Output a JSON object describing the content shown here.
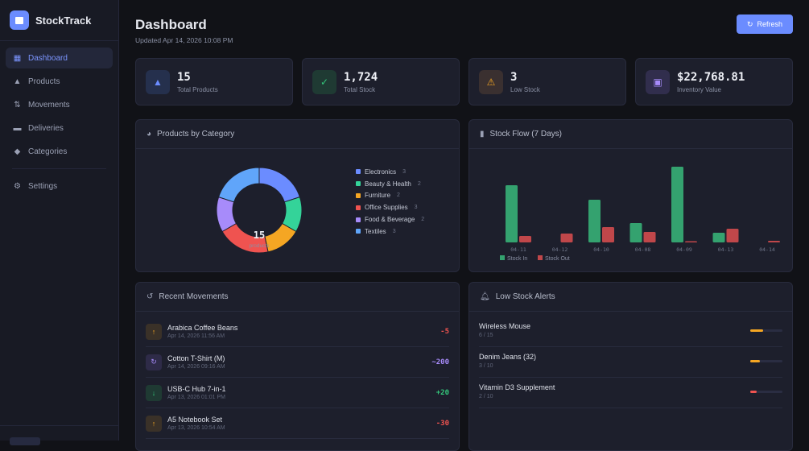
{
  "app": {
    "name": "StockTrack"
  },
  "sidebar": {
    "items": [
      {
        "label": "Dashboard",
        "icon": "dashboard-icon",
        "active": true
      },
      {
        "label": "Products",
        "icon": "shapes-icon"
      },
      {
        "label": "Movements",
        "icon": "arrows-updown-icon"
      },
      {
        "label": "Deliveries",
        "icon": "truck-icon"
      },
      {
        "label": "Categories",
        "icon": "tag-icon"
      }
    ],
    "settings": {
      "label": "Settings",
      "icon": "gear-icon"
    }
  },
  "header": {
    "title": "Dashboard",
    "updated": "Updated Apr 14, 2026 10:08 PM",
    "refresh_label": "Refresh"
  },
  "stats": [
    {
      "value": "15",
      "label": "Total Products",
      "color": "#6b8cff"
    },
    {
      "value": "1,724",
      "label": "Total Stock",
      "color": "#34c77b"
    },
    {
      "value": "3",
      "label": "Low Stock",
      "color": "#f5a623"
    },
    {
      "value": "$22,768.81",
      "label": "Inventory Value",
      "color": "#a78bfa"
    }
  ],
  "category_panel": {
    "title": "Products by Category",
    "total": "15",
    "total_label": "products"
  },
  "stock_flow_panel": {
    "title": "Stock Flow (7 Days)"
  },
  "chart_data": [
    {
      "type": "pie",
      "donut": true,
      "categories": [
        "Electronics",
        "Beauty & Health",
        "Furniture",
        "Office Supplies",
        "Food & Beverage",
        "Textiles"
      ],
      "values": [
        3,
        2,
        2,
        3,
        2,
        3
      ],
      "colors": [
        "#6b8cff",
        "#34d399",
        "#f5a623",
        "#ef5350",
        "#a78bfa",
        "#60a5fa"
      ],
      "legend": "right"
    },
    {
      "type": "bar",
      "categories": [
        "04-11",
        "04-12",
        "04-10",
        "04-08",
        "04-09",
        "04-13",
        "04-14"
      ],
      "series": [
        {
          "name": "Stock In",
          "values": [
            71,
            0,
            53,
            24,
            94,
            12,
            0
          ],
          "color": "#34a26f"
        },
        {
          "name": "Stock Out",
          "values": [
            8,
            11,
            19,
            13,
            1,
            17,
            2
          ],
          "color": "#c0474a"
        }
      ],
      "legend": "bottom-left",
      "grid": false
    }
  ],
  "recent_movements": {
    "title": "Recent Movements",
    "items": [
      {
        "name": "Arabica Coffee Beans",
        "date": "Apr 14, 2026 11:56 AM",
        "qty": "-5",
        "type": "out"
      },
      {
        "name": "Cotton T-Shirt (M)",
        "date": "Apr 14, 2026 09:16 AM",
        "qty": "~200",
        "type": "adjust"
      },
      {
        "name": "USB-C Hub 7-in-1",
        "date": "Apr 13, 2026 01:01 PM",
        "qty": "+20",
        "type": "in"
      },
      {
        "name": "A5 Notebook Set",
        "date": "Apr 13, 2026 10:54 AM",
        "qty": "-30",
        "type": "out"
      }
    ]
  },
  "low_stock": {
    "title": "Low Stock Alerts",
    "items": [
      {
        "name": "Wireless Mouse",
        "level": "6 / 15",
        "fraction": 0.4,
        "color": "#f5a623"
      },
      {
        "name": "Denim Jeans (32)",
        "level": "3 / 10",
        "fraction": 0.3,
        "color": "#f5a623"
      },
      {
        "name": "Vitamin D3 Supplement",
        "level": "2 / 10",
        "fraction": 0.2,
        "color": "#ef5350"
      }
    ]
  }
}
